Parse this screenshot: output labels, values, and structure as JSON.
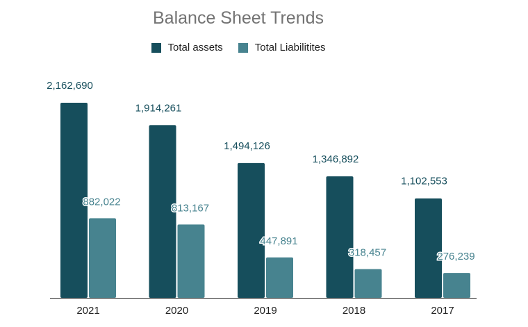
{
  "chart_data": {
    "type": "bar",
    "title": "Balance Sheet Trends",
    "categories": [
      "2021",
      "2020",
      "2019",
      "2018",
      "2017"
    ],
    "series": [
      {
        "name": "Total assets",
        "values": [
          2162690,
          1914261,
          1494126,
          1346892,
          1102553
        ],
        "color": "#164e5c"
      },
      {
        "name": "Total Liabilitites",
        "values": [
          882022,
          813167,
          447891,
          318457,
          276239
        ],
        "color": "#47838f"
      }
    ],
    "data_labels": [
      [
        "2,162,690",
        "1,914,261",
        "1,494,126",
        "1,346,892",
        "1,102,553"
      ],
      [
        "882,022",
        "813,167",
        "447,891",
        "318,457",
        "276,239"
      ]
    ],
    "ylim": [
      0,
      2500000
    ],
    "grid": false,
    "legend_position": "top"
  }
}
